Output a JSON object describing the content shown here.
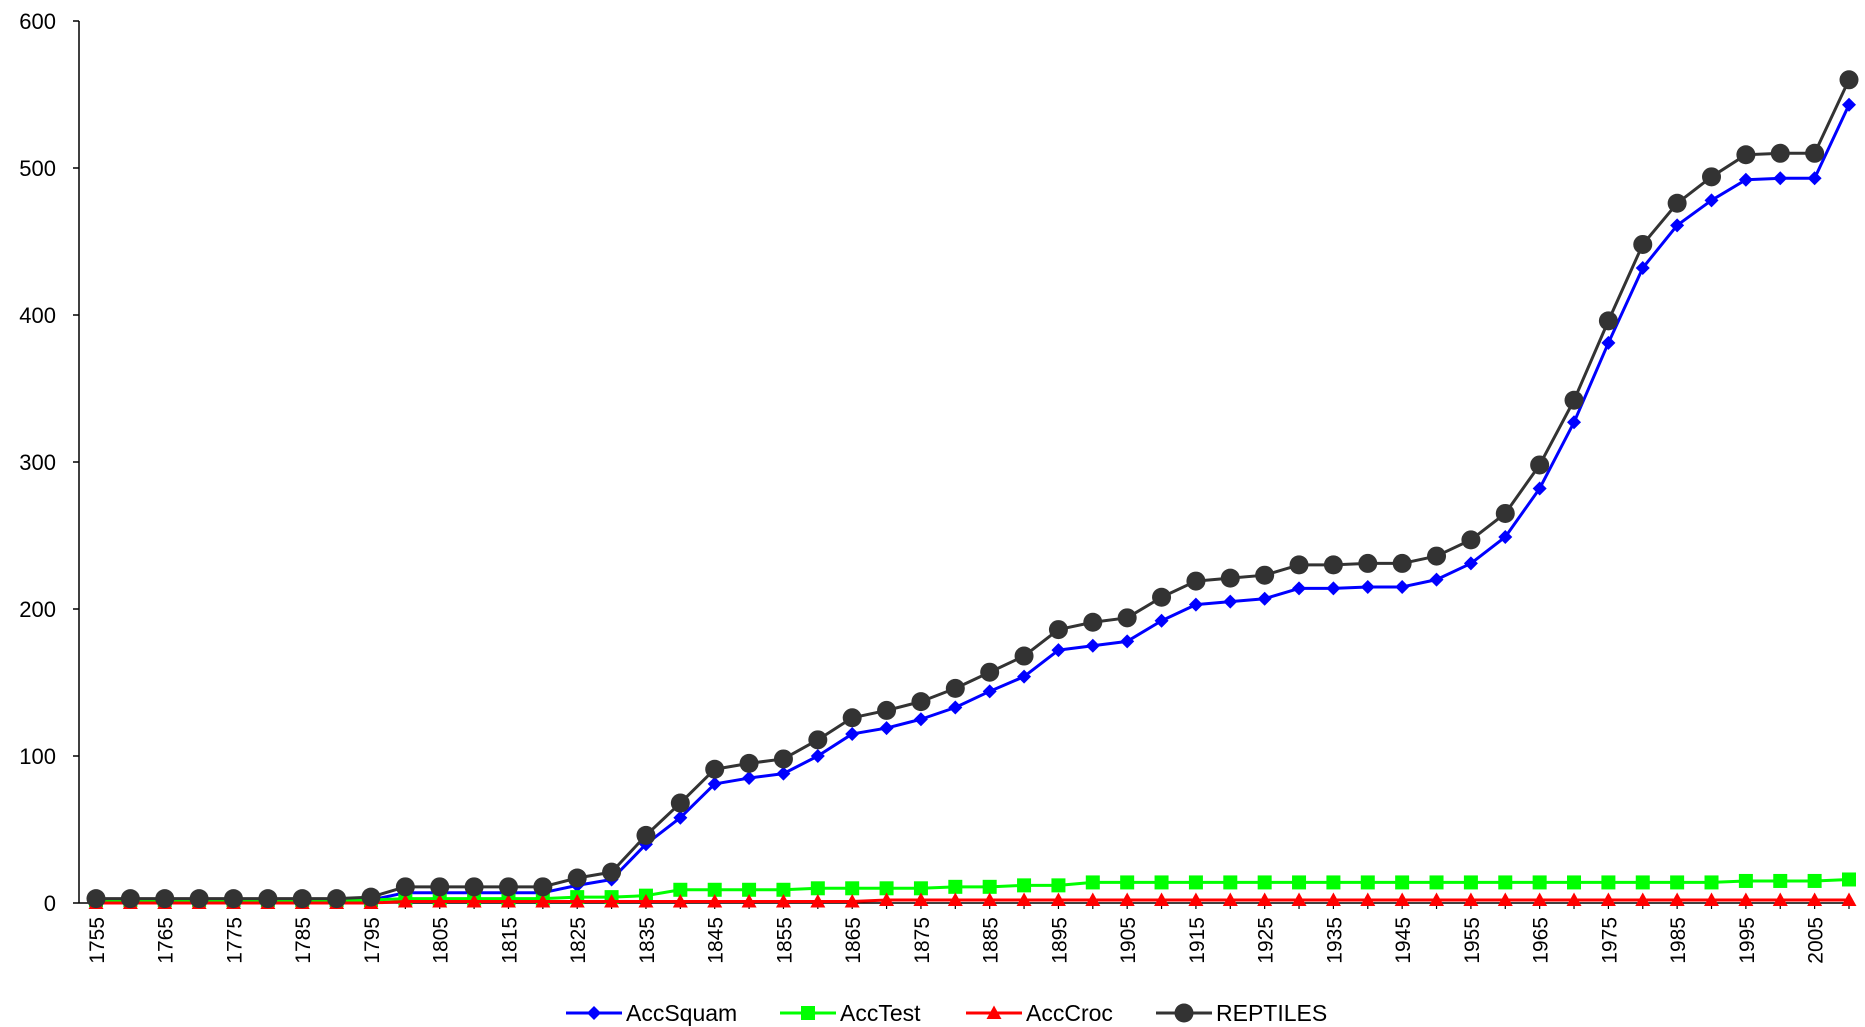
{
  "chart_data": {
    "type": "line",
    "title": "",
    "xlabel": "",
    "ylabel": "",
    "ylim": [
      0,
      600
    ],
    "y_ticks": [
      0,
      100,
      200,
      300,
      400,
      500,
      600
    ],
    "x": [
      1755,
      1760,
      1765,
      1770,
      1775,
      1780,
      1785,
      1790,
      1795,
      1800,
      1805,
      1810,
      1815,
      1820,
      1825,
      1830,
      1835,
      1840,
      1845,
      1850,
      1855,
      1860,
      1865,
      1870,
      1875,
      1880,
      1885,
      1890,
      1895,
      1900,
      1905,
      1910,
      1915,
      1920,
      1925,
      1930,
      1935,
      1940,
      1945,
      1950,
      1955,
      1960,
      1965,
      1970,
      1975,
      1980,
      1985,
      1990,
      1995,
      2000,
      2005,
      2010
    ],
    "x_tick_labels": [
      "1755",
      "1765",
      "1775",
      "1785",
      "1795",
      "1805",
      "1815",
      "1825",
      "1835",
      "1845",
      "1855",
      "1865",
      "1875",
      "1885",
      "1895",
      "1905",
      "1915",
      "1925",
      "1935",
      "1945",
      "1955",
      "1965",
      "1975",
      "1985",
      "1995",
      "2005"
    ],
    "grid": false,
    "legend_position": "bottom",
    "series": [
      {
        "name": "AccSquam",
        "color": "#0000ff",
        "marker": "diamond",
        "values": [
          1,
          1,
          1,
          1,
          1,
          1,
          1,
          1,
          2,
          7,
          7,
          7,
          7,
          7,
          12,
          16,
          40,
          58,
          81,
          85,
          88,
          100,
          115,
          119,
          125,
          133,
          144,
          154,
          172,
          175,
          178,
          192,
          203,
          205,
          207,
          214,
          214,
          215,
          215,
          220,
          231,
          249,
          282,
          327,
          381,
          432,
          461,
          478,
          492,
          493,
          493,
          543
        ]
      },
      {
        "name": "AccTest",
        "color": "#00ff00",
        "marker": "square",
        "values": [
          2,
          2,
          2,
          2,
          2,
          2,
          2,
          2,
          2,
          3,
          3,
          3,
          3,
          3,
          4,
          4,
          5,
          9,
          9,
          9,
          9,
          10,
          10,
          10,
          10,
          11,
          11,
          12,
          12,
          14,
          14,
          14,
          14,
          14,
          14,
          14,
          14,
          14,
          14,
          14,
          14,
          14,
          14,
          14,
          14,
          14,
          14,
          14,
          15,
          15,
          15,
          16
        ]
      },
      {
        "name": "AccCroc",
        "color": "#ff0000",
        "marker": "triangle",
        "values": [
          0,
          0,
          0,
          0,
          0,
          0,
          0,
          0,
          0,
          1,
          1,
          1,
          1,
          1,
          1,
          1,
          1,
          1,
          1,
          1,
          1,
          1,
          1,
          2,
          2,
          2,
          2,
          2,
          2,
          2,
          2,
          2,
          2,
          2,
          2,
          2,
          2,
          2,
          2,
          2,
          2,
          2,
          2,
          2,
          2,
          2,
          2,
          2,
          2,
          2,
          2,
          2
        ]
      },
      {
        "name": "REPTILES",
        "color": "#333333",
        "marker": "circle",
        "values": [
          3,
          3,
          3,
          3,
          3,
          3,
          3,
          3,
          4,
          11,
          11,
          11,
          11,
          11,
          17,
          21,
          46,
          68,
          91,
          95,
          98,
          111,
          126,
          131,
          137,
          146,
          157,
          168,
          186,
          191,
          194,
          208,
          219,
          221,
          223,
          230,
          230,
          231,
          231,
          236,
          247,
          265,
          298,
          342,
          396,
          448,
          476,
          494,
          509,
          510,
          510,
          560
        ]
      }
    ]
  }
}
